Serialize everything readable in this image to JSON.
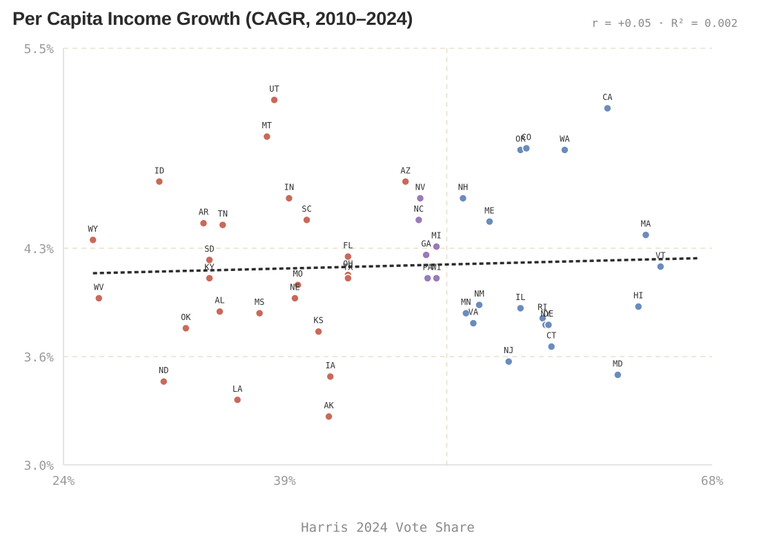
{
  "header": {
    "title": "Per Capita Income Growth (CAGR, 2010–2024)",
    "stats": "r = +0.05 · R² = 0.002"
  },
  "colors": {
    "republican": "#c9695a",
    "swing": "#9a7ab8",
    "democrat": "#6a8cbb",
    "grid": "#e8e0c8",
    "axis": "#dcdcdc",
    "trend": "#2b2b2b"
  },
  "chart_data": {
    "type": "scatter",
    "title": "Per Capita Income Growth (CAGR, 2010–2024)",
    "xlabel": "Harris 2024 Vote Share",
    "ylabel": "",
    "xlim": [
      24,
      68
    ],
    "ylim": [
      3.0,
      5.5
    ],
    "x_ticks": [
      {
        "value": 24,
        "label": "24%"
      },
      {
        "value": 39,
        "label": "39%"
      },
      {
        "value": 68,
        "label": "68%"
      }
    ],
    "y_ticks": [
      {
        "value": 5.5,
        "label": "5.5%"
      },
      {
        "value": 4.3,
        "label": "4.3%"
      },
      {
        "value": 3.65,
        "label": "3.6%"
      },
      {
        "value": 3.0,
        "label": "3.0%"
      }
    ],
    "vertical_reference_x": 50,
    "trendline": {
      "x": [
        26,
        67
      ],
      "y": [
        4.15,
        4.24
      ]
    },
    "points": [
      {
        "state": "WY",
        "x": 26.0,
        "y": 4.35,
        "group": "republican"
      },
      {
        "state": "WV",
        "x": 26.4,
        "y": 4.0,
        "group": "republican"
      },
      {
        "state": "ID",
        "x": 30.5,
        "y": 4.7,
        "group": "republican"
      },
      {
        "state": "ND",
        "x": 30.8,
        "y": 3.5,
        "group": "republican"
      },
      {
        "state": "OK",
        "x": 32.3,
        "y": 3.82,
        "group": "republican"
      },
      {
        "state": "AR",
        "x": 33.5,
        "y": 4.45,
        "group": "republican"
      },
      {
        "state": "SD",
        "x": 33.9,
        "y": 4.23,
        "group": "republican"
      },
      {
        "state": "KY",
        "x": 33.9,
        "y": 4.12,
        "group": "republican"
      },
      {
        "state": "AL",
        "x": 34.6,
        "y": 3.92,
        "group": "republican"
      },
      {
        "state": "TN",
        "x": 34.8,
        "y": 4.44,
        "group": "republican"
      },
      {
        "state": "LA",
        "x": 35.8,
        "y": 3.39,
        "group": "republican"
      },
      {
        "state": "MS",
        "x": 37.3,
        "y": 3.91,
        "group": "republican"
      },
      {
        "state": "MT",
        "x": 37.8,
        "y": 4.97,
        "group": "republican"
      },
      {
        "state": "UT",
        "x": 38.3,
        "y": 5.19,
        "group": "republican"
      },
      {
        "state": "IN",
        "x": 39.3,
        "y": 4.6,
        "group": "republican"
      },
      {
        "state": "NE",
        "x": 39.7,
        "y": 4.0,
        "group": "republican"
      },
      {
        "state": "MO",
        "x": 39.9,
        "y": 4.08,
        "group": "republican"
      },
      {
        "state": "SC",
        "x": 40.5,
        "y": 4.47,
        "group": "republican"
      },
      {
        "state": "KS",
        "x": 41.3,
        "y": 3.8,
        "group": "republican"
      },
      {
        "state": "IA",
        "x": 42.1,
        "y": 3.53,
        "group": "republican"
      },
      {
        "state": "AK",
        "x": 42.0,
        "y": 3.29,
        "group": "republican"
      },
      {
        "state": "FL",
        "x": 43.3,
        "y": 4.25,
        "group": "republican"
      },
      {
        "state": "OH",
        "x": 43.3,
        "y": 4.14,
        "group": "republican"
      },
      {
        "state": "TX",
        "x": 43.3,
        "y": 4.12,
        "group": "republican"
      },
      {
        "state": "AZ",
        "x": 47.2,
        "y": 4.7,
        "group": "republican"
      },
      {
        "state": "NV",
        "x": 48.2,
        "y": 4.6,
        "group": "swing"
      },
      {
        "state": "NC",
        "x": 48.1,
        "y": 4.47,
        "group": "swing"
      },
      {
        "state": "GA",
        "x": 48.6,
        "y": 4.26,
        "group": "swing"
      },
      {
        "state": "PA",
        "x": 48.7,
        "y": 4.12,
        "group": "swing"
      },
      {
        "state": "MI",
        "x": 49.3,
        "y": 4.31,
        "group": "swing"
      },
      {
        "state": "WI",
        "x": 49.3,
        "y": 4.12,
        "group": "swing"
      },
      {
        "state": "NH",
        "x": 51.1,
        "y": 4.6,
        "group": "democrat"
      },
      {
        "state": "MN",
        "x": 51.3,
        "y": 3.91,
        "group": "democrat"
      },
      {
        "state": "VA",
        "x": 51.8,
        "y": 3.85,
        "group": "democrat"
      },
      {
        "state": "NM",
        "x": 52.2,
        "y": 3.96,
        "group": "democrat"
      },
      {
        "state": "ME",
        "x": 52.9,
        "y": 4.46,
        "group": "democrat"
      },
      {
        "state": "NJ",
        "x": 54.2,
        "y": 3.62,
        "group": "democrat"
      },
      {
        "state": "OR",
        "x": 55.0,
        "y": 4.89,
        "group": "democrat"
      },
      {
        "state": "CO",
        "x": 55.4,
        "y": 4.9,
        "group": "democrat"
      },
      {
        "state": "IL",
        "x": 55.0,
        "y": 3.94,
        "group": "democrat"
      },
      {
        "state": "RI",
        "x": 56.5,
        "y": 3.88,
        "group": "democrat"
      },
      {
        "state": "NY",
        "x": 56.7,
        "y": 3.84,
        "group": "democrat"
      },
      {
        "state": "DE",
        "x": 56.9,
        "y": 3.84,
        "group": "democrat"
      },
      {
        "state": "CT",
        "x": 57.1,
        "y": 3.71,
        "group": "democrat"
      },
      {
        "state": "WA",
        "x": 58.0,
        "y": 4.89,
        "group": "democrat"
      },
      {
        "state": "CA",
        "x": 60.9,
        "y": 5.14,
        "group": "democrat"
      },
      {
        "state": "MD",
        "x": 61.6,
        "y": 3.54,
        "group": "democrat"
      },
      {
        "state": "HI",
        "x": 63.0,
        "y": 3.95,
        "group": "democrat"
      },
      {
        "state": "MA",
        "x": 63.5,
        "y": 4.38,
        "group": "democrat"
      },
      {
        "state": "VT",
        "x": 64.5,
        "y": 4.19,
        "group": "democrat"
      }
    ]
  }
}
